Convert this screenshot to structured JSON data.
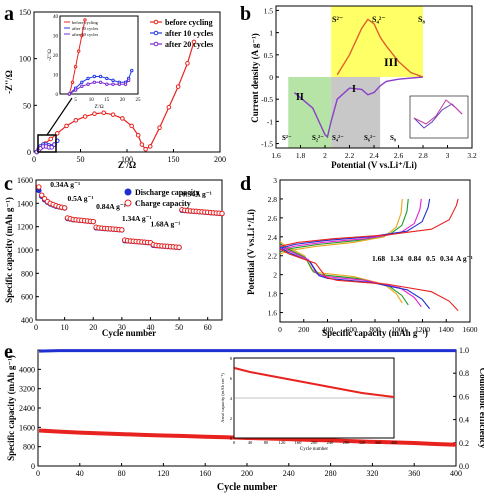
{
  "chart_data": [
    {
      "panel": "a",
      "type": "scatter",
      "xlabel": "Z'/Ω",
      "ylabel": "-Z''/Ω",
      "xlim": [
        0,
        200
      ],
      "ylim": [
        0,
        150
      ],
      "xticks": [
        0,
        50,
        100,
        150,
        200
      ],
      "yticks": [
        0,
        50,
        100,
        150
      ],
      "legend_position": "top-right",
      "series": [
        {
          "name": "before cycling",
          "color": "#e8231f",
          "x": [
            3,
            5,
            8,
            12,
            18,
            25,
            35,
            45,
            55,
            65,
            75,
            85,
            95,
            105,
            112,
            116,
            120,
            125,
            135,
            145,
            155,
            165,
            172
          ],
          "y": [
            0,
            2,
            5,
            9,
            14,
            20,
            28,
            34,
            38,
            41,
            42,
            40,
            36,
            28,
            18,
            8,
            3,
            6,
            26,
            48,
            70,
            95,
            118
          ]
        },
        {
          "name": "after 10 cycles",
          "color": "#2137e8",
          "x": [
            3,
            5,
            7,
            10,
            13,
            16,
            19,
            22,
            25
          ],
          "y": [
            0,
            3,
            6,
            8,
            8,
            7,
            6,
            8,
            12
          ]
        },
        {
          "name": "after 20 cycles",
          "color": "#7a2bd0",
          "x": [
            3,
            5,
            7,
            10,
            13,
            16,
            19,
            22
          ],
          "y": [
            0,
            2,
            4,
            6,
            6,
            5,
            5,
            8
          ]
        }
      ],
      "inset": {
        "xlabel": "Z'/Ω",
        "ylabel": "-Z''/Ω",
        "xlim": [
          0,
          25
        ],
        "ylim": [
          0,
          40
        ],
        "xticks": [
          5,
          10,
          15,
          20,
          25
        ],
        "yticks": [
          0,
          10,
          20,
          30,
          40
        ],
        "series": [
          {
            "name": "before cycling",
            "color": "#e8231f",
            "x": [
              3,
              4,
              5,
              6,
              7,
              8
            ],
            "y": [
              0,
              6,
              14,
              22,
              30,
              38
            ]
          },
          {
            "name": "after 10 cycles",
            "color": "#2137e8",
            "x": [
              3,
              5,
              7,
              9,
              11,
              13,
              15,
              17,
              19,
              21,
              22,
              23
            ],
            "y": [
              0,
              3,
              6,
              8,
              9,
              9,
              8,
              7,
              6,
              6,
              8,
              12
            ]
          },
          {
            "name": "after 20 cycles",
            "color": "#7a2bd0",
            "x": [
              3,
              5,
              7,
              9,
              11,
              13,
              15,
              17,
              19,
              21,
              22
            ],
            "y": [
              0,
              2,
              4,
              5,
              6,
              6,
              5,
              5,
              5,
              5,
              7
            ]
          }
        ]
      }
    },
    {
      "panel": "b",
      "type": "line",
      "xlabel": "Potential (V vs.Li⁺/Li)",
      "ylabel": "Current density (A g⁻¹)",
      "xlim": [
        1.6,
        3.2
      ],
      "ylim": [
        -1.6,
        1.6
      ],
      "xticks": [
        1.6,
        1.8,
        2.0,
        2.2,
        2.4,
        2.6,
        2.8,
        3.0,
        3.2
      ],
      "yticks": [
        -1.5,
        -1.0,
        -0.5,
        0.0,
        0.5,
        1.0,
        1.5
      ],
      "regions": [
        {
          "label": "II",
          "range": [
            1.7,
            2.05
          ],
          "color": "#b6e3a6"
        },
        {
          "label": "I",
          "range": [
            2.05,
            2.45
          ],
          "color": "#c8c8c8"
        },
        {
          "label": "III",
          "range": [
            2.05,
            2.8
          ],
          "color": "#ffff66"
        }
      ],
      "annotations": [
        "S²⁻",
        "S₂²⁻",
        "S₄²⁻",
        "S₆²⁻",
        "S₈",
        "S²⁻",
        "S₄²⁻",
        "S₈",
        "II",
        "I",
        "III"
      ],
      "cathodic": {
        "x": [
          1.75,
          1.9,
          1.95,
          2.0,
          2.02,
          2.05,
          2.1,
          2.2,
          2.3,
          2.35,
          2.4,
          2.45,
          2.5,
          2.6,
          2.8
        ],
        "y": [
          -0.35,
          -0.7,
          -1.0,
          -1.3,
          -1.35,
          -1.0,
          -0.5,
          -0.25,
          -0.28,
          -0.4,
          -0.35,
          -0.2,
          -0.1,
          -0.05,
          0.0
        ]
      },
      "anodic": {
        "x": [
          2.1,
          2.2,
          2.3,
          2.35,
          2.4,
          2.45,
          2.5,
          2.6,
          2.7,
          2.8
        ],
        "y": [
          0.05,
          0.5,
          1.1,
          1.3,
          1.2,
          0.9,
          0.7,
          0.35,
          0.1,
          0.0
        ]
      }
    },
    {
      "panel": "c",
      "type": "scatter",
      "xlabel": "Cycle number",
      "ylabel": "Specific capacity (mAh g⁻¹)",
      "xlim": [
        0,
        65
      ],
      "ylim": [
        400,
        1600
      ],
      "xticks": [
        0,
        10,
        20,
        30,
        40,
        50,
        60
      ],
      "yticks": [
        400,
        600,
        800,
        1000,
        1200,
        1400,
        1600
      ],
      "legend_position": "top-right",
      "series": [
        {
          "name": "Discharge capacity",
          "color": "#1f2fd0",
          "x": [
            1,
            2,
            3,
            4,
            5,
            6,
            7,
            8,
            9,
            10,
            11,
            12,
            13,
            14,
            15,
            16,
            17,
            18,
            19,
            20,
            21,
            22,
            23,
            24,
            25,
            26,
            27,
            28,
            29,
            30,
            31,
            32,
            33,
            34,
            35,
            36,
            37,
            38,
            39,
            40,
            41,
            42,
            43,
            44,
            45,
            46,
            47,
            48,
            49,
            50,
            51,
            52,
            53,
            54,
            55,
            56,
            57,
            58,
            59,
            60,
            61,
            62,
            63,
            64,
            65
          ],
          "y": [
            1510,
            1460,
            1430,
            1410,
            1395,
            1385,
            1375,
            1370,
            1365,
            1360,
            1270,
            1265,
            1260,
            1258,
            1255,
            1253,
            1250,
            1248,
            1245,
            1243,
            1190,
            1188,
            1186,
            1184,
            1182,
            1180,
            1178,
            1176,
            1174,
            1172,
            1080,
            1078,
            1076,
            1074,
            1072,
            1070,
            1068,
            1066,
            1064,
            1062,
            1040,
            1038,
            1036,
            1034,
            1032,
            1030,
            1028,
            1026,
            1024,
            1022,
            1340,
            1338,
            1336,
            1334,
            1332,
            1330,
            1328,
            1326,
            1324,
            1322,
            1320,
            1318,
            1316,
            1314,
            1312
          ]
        },
        {
          "name": "Charge capacity",
          "color": "#e8231f",
          "x": [
            1,
            2,
            3,
            4,
            5,
            6,
            7,
            8,
            9,
            10,
            11,
            12,
            13,
            14,
            15,
            16,
            17,
            18,
            19,
            20,
            21,
            22,
            23,
            24,
            25,
            26,
            27,
            28,
            29,
            30,
            31,
            32,
            33,
            34,
            35,
            36,
            37,
            38,
            39,
            40,
            41,
            42,
            43,
            44,
            45,
            46,
            47,
            48,
            49,
            50,
            51,
            52,
            53,
            54,
            55,
            56,
            57,
            58,
            59,
            60,
            61,
            62,
            63,
            64,
            65
          ],
          "y": [
            1540,
            1470,
            1440,
            1415,
            1400,
            1390,
            1380,
            1372,
            1366,
            1362,
            1275,
            1268,
            1262,
            1259,
            1256,
            1254,
            1251,
            1249,
            1246,
            1244,
            1195,
            1190,
            1187,
            1185,
            1183,
            1181,
            1179,
            1177,
            1175,
            1173,
            1085,
            1080,
            1077,
            1075,
            1073,
            1071,
            1069,
            1067,
            1065,
            1063,
            1045,
            1040,
            1037,
            1035,
            1033,
            1031,
            1029,
            1027,
            1025,
            1023,
            1345,
            1340,
            1337,
            1335,
            1333,
            1331,
            1329,
            1327,
            1325,
            1323,
            1321,
            1319,
            1317,
            1315,
            1313
          ]
        }
      ],
      "rate_labels": [
        "0.34A g⁻¹",
        "0.5A g⁻¹",
        "0.84A g⁻¹",
        "1.34A g⁻¹",
        "1.68A g⁻¹",
        "0.34A g⁻¹"
      ]
    },
    {
      "panel": "d",
      "type": "line",
      "xlabel": "Specific capacity (mAh g⁻¹)",
      "ylabel": "Potential (V vs.Li⁺/Li)",
      "xlim": [
        0,
        1600
      ],
      "ylim": [
        1.5,
        3.0
      ],
      "xticks": [
        0,
        200,
        400,
        600,
        800,
        1000,
        1200,
        1400,
        1600
      ],
      "yticks": [
        1.6,
        1.8,
        2.0,
        2.2,
        2.4,
        2.6,
        2.8,
        3.0
      ],
      "legend_labels": [
        "1.68",
        "1.34",
        "0.84",
        "0.5",
        "0.34",
        "A g⁻¹"
      ],
      "series": [
        {
          "name": "1.68",
          "color": "#e8a516",
          "capacity": 1030
        },
        {
          "name": "1.34",
          "color": "#1f9a2a",
          "capacity": 1080
        },
        {
          "name": "0.84",
          "color": "#e81fd0",
          "capacity": 1190
        },
        {
          "name": "0.5",
          "color": "#1f2fd0",
          "capacity": 1260
        },
        {
          "name": "0.34",
          "color": "#e8231f",
          "capacity": 1500
        }
      ]
    },
    {
      "panel": "e",
      "type": "scatter",
      "xlabel": "Cycle number",
      "ylabel": "Specific capacity (mAh g⁻¹)",
      "y2label": "Coulombic efficiency",
      "xlim": [
        0,
        400
      ],
      "ylim": [
        0,
        4800
      ],
      "y2lim": [
        0.0,
        1.0
      ],
      "xticks": [
        0,
        40,
        80,
        120,
        160,
        200,
        240,
        280,
        320,
        360,
        400
      ],
      "yticks": [
        0,
        800,
        1600,
        2400,
        3200,
        4000
      ],
      "y2ticks": [
        0.0,
        0.2,
        0.4,
        0.6,
        0.8,
        1.0
      ],
      "series": [
        {
          "name": "Specific capacity",
          "color": "#e8231f",
          "x": [
            1,
            20,
            40,
            60,
            80,
            100,
            120,
            140,
            160,
            180,
            200,
            220,
            240,
            260,
            280,
            300,
            320,
            340,
            360,
            380,
            400
          ],
          "y": [
            1470,
            1420,
            1380,
            1350,
            1320,
            1290,
            1260,
            1240,
            1210,
            1190,
            1160,
            1140,
            1110,
            1080,
            1060,
            1030,
            1000,
            980,
            950,
            910,
            880
          ]
        },
        {
          "name": "Coulombic efficiency",
          "color": "#1f2fd0",
          "axis": "right",
          "x": [
            1,
            20,
            40,
            60,
            80,
            100,
            120,
            140,
            160,
            180,
            200,
            220,
            240,
            260,
            280,
            300,
            320,
            340,
            360,
            380,
            400
          ],
          "y": [
            0.99,
            0.995,
            0.995,
            0.995,
            0.995,
            0.995,
            0.995,
            0.995,
            0.995,
            0.995,
            0.995,
            0.995,
            0.995,
            0.995,
            0.995,
            0.995,
            0.995,
            0.995,
            0.995,
            0.995,
            0.995
          ]
        }
      ],
      "inset": {
        "xlabel": "Cycle number",
        "ylabel": "Areal capacity (mAh cm⁻²)",
        "xlim": [
          0,
          400
        ],
        "ylim": [
          0,
          8
        ],
        "xticks": [
          0,
          40,
          80,
          120,
          160,
          200,
          240,
          280,
          320,
          360,
          400
        ],
        "yticks": [
          0,
          2,
          4,
          6,
          8
        ],
        "series": [
          {
            "name": "Areal capacity",
            "color": "#e8231f",
            "x": [
              1,
              40,
              80,
              120,
              160,
              200,
              240,
              280,
              320,
              360,
              400
            ],
            "y": [
              7.0,
              6.6,
              6.3,
              6.0,
              5.7,
              5.4,
              5.1,
              4.8,
              4.5,
              4.3,
              4.1
            ]
          }
        ]
      }
    }
  ],
  "panel_labels": [
    "a",
    "b",
    "c",
    "d",
    "e"
  ]
}
